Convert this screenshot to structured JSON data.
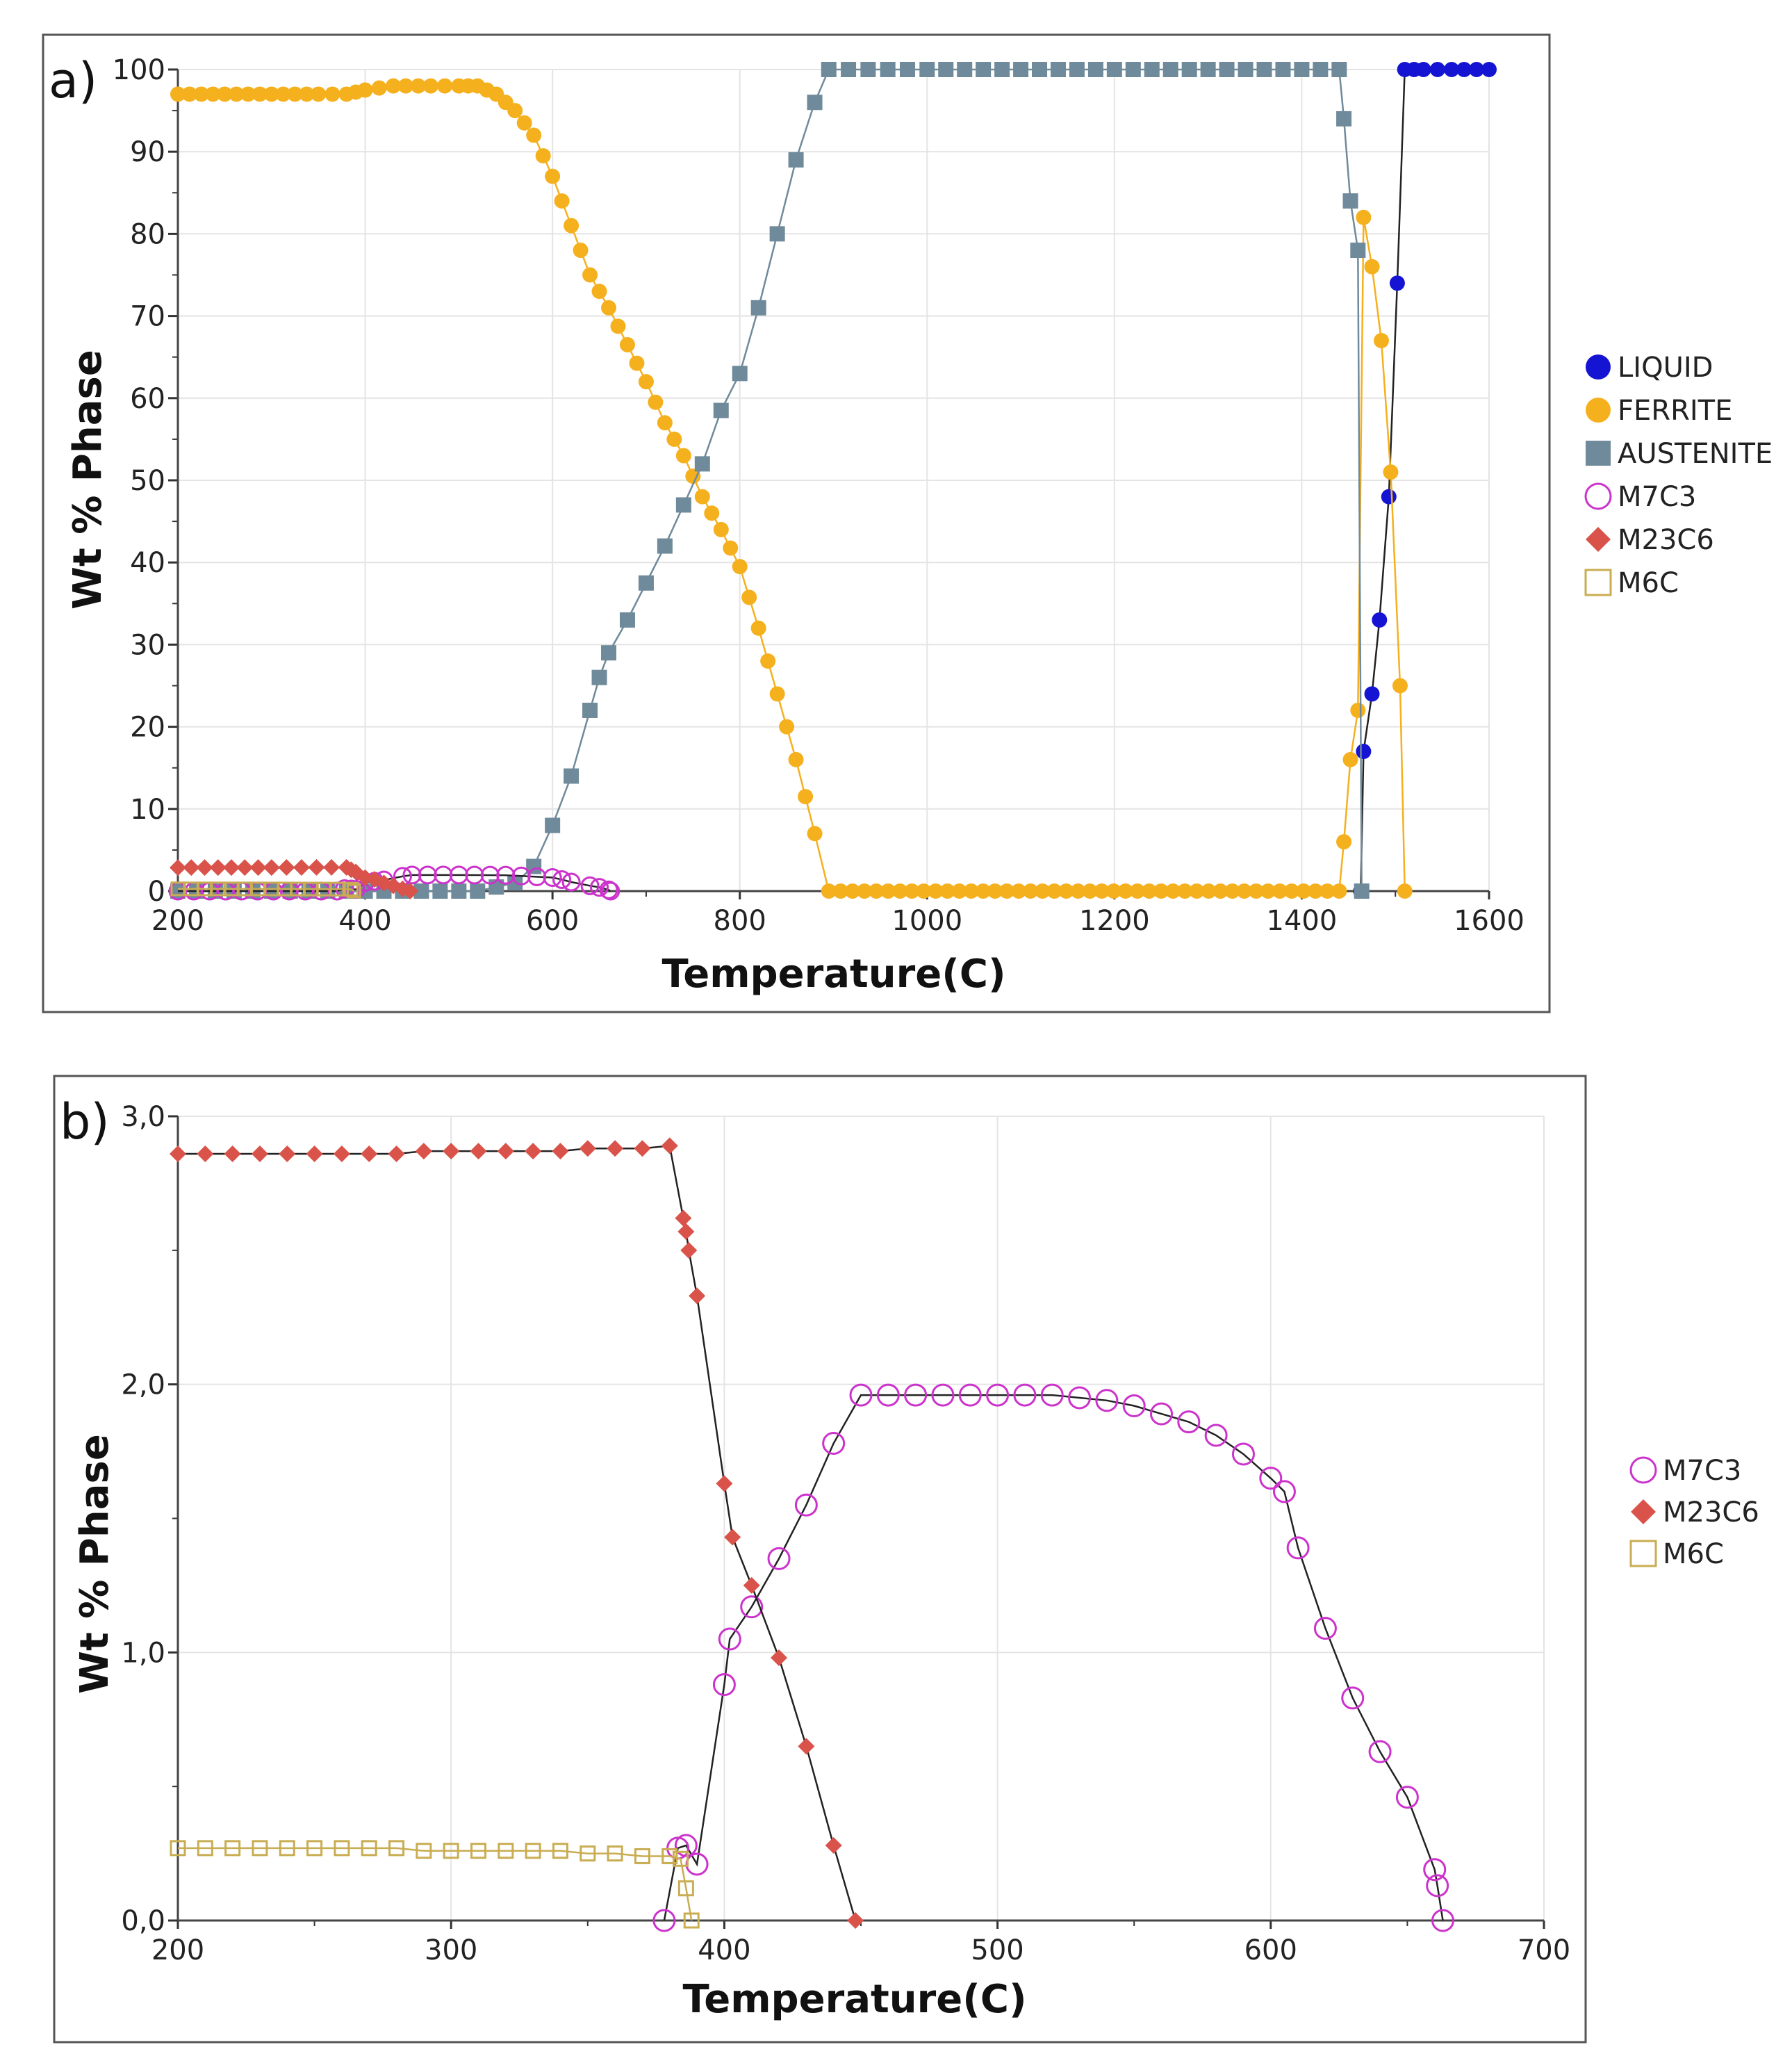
{
  "colors": {
    "liquid": "#1414d2",
    "ferrite": "#f5b01e",
    "austenite": "#6f8a9a",
    "m7c3": "#cc33cc",
    "m23c6": "#d9534a",
    "m6c": "#c9ad52",
    "line": "#222222",
    "grid": "#e4e4e4",
    "frame": "#555555"
  },
  "chart_data": [
    {
      "panel_label": "a)",
      "type": "line",
      "xlabel": "Temperature(C)",
      "ylabel": "Wt % Phase",
      "xlim": [
        200,
        1600
      ],
      "ylim": [
        0,
        100
      ],
      "xticks": [
        "200",
        "400",
        "600",
        "800",
        "1000",
        "1200",
        "1400",
        "1600"
      ],
      "yticks": [
        "0",
        "10",
        "20",
        "30",
        "40",
        "50",
        "60",
        "70",
        "80",
        "90",
        "100"
      ],
      "legend_position": "right",
      "legend": [
        "LIQUID",
        "FERRITE",
        "AUSTENITE",
        "M7C3",
        "M23C6",
        "M6C"
      ],
      "series": [
        {
          "name": "LIQUID",
          "marker": "filled-circle",
          "x": [
            1463,
            1466,
            1475,
            1483,
            1493,
            1502,
            1510,
            1530,
            1560,
            1600
          ],
          "y": [
            0,
            17,
            24,
            33,
            48,
            74,
            100,
            100,
            100,
            100
          ]
        },
        {
          "name": "FERRITE",
          "marker": "filled-circle",
          "x": [
            200,
            250,
            300,
            350,
            380,
            400,
            430,
            470,
            500,
            520,
            540,
            560,
            580,
            600,
            620,
            640,
            650,
            660,
            680,
            700,
            720,
            740,
            760,
            780,
            800,
            820,
            840,
            860,
            880,
            895,
            1440,
            1445,
            1452,
            1460,
            1466,
            1475,
            1485,
            1495,
            1505,
            1510
          ],
          "y": [
            97,
            97,
            97,
            97,
            97,
            97.5,
            98,
            98,
            98,
            98,
            97,
            95,
            92,
            87,
            81,
            75,
            73,
            71,
            66.5,
            62,
            57,
            53,
            48,
            44,
            39.5,
            32,
            24,
            16,
            7,
            0,
            0,
            6,
            16,
            22,
            82,
            76,
            67,
            51,
            25,
            0
          ]
        },
        {
          "name": "AUSTENITE",
          "marker": "filled-square",
          "x": [
            200,
            400,
            500,
            520,
            540,
            560,
            580,
            600,
            620,
            640,
            650,
            660,
            680,
            700,
            720,
            740,
            760,
            780,
            800,
            820,
            840,
            860,
            880,
            895,
            1000,
            1200,
            1400,
            1440,
            1445,
            1452,
            1460,
            1464
          ],
          "y": [
            0,
            0,
            0,
            0,
            0.5,
            1,
            3,
            8,
            14,
            22,
            26,
            29,
            33,
            37.5,
            42,
            47,
            52,
            58.5,
            63,
            71,
            80,
            89,
            96,
            100,
            100,
            100,
            100,
            100,
            94,
            84,
            78,
            0
          ]
        },
        {
          "name": "M7C3",
          "marker": "open-circle",
          "x": [
            200,
            370,
            378,
            385,
            390,
            400,
            410,
            420,
            440,
            450,
            500,
            550,
            600,
            610,
            620,
            640,
            650,
            660,
            662
          ],
          "y": [
            0,
            0,
            0.3,
            0.25,
            0.2,
            1.05,
            1.2,
            1.35,
            1.8,
            1.96,
            1.96,
            1.93,
            1.65,
            1.4,
            1.1,
            0.65,
            0.46,
            0.15,
            0
          ]
        },
        {
          "name": "M23C6",
          "marker": "filled-diamond",
          "x": [
            200,
            300,
            380,
            385,
            390,
            400,
            410,
            420,
            430,
            440,
            448
          ],
          "y": [
            2.86,
            2.87,
            2.89,
            2.6,
            2.33,
            1.63,
            1.43,
            0.98,
            0.65,
            0.28,
            0
          ]
        },
        {
          "name": "M6C",
          "marker": "open-square",
          "x": [
            200,
            300,
            370,
            385,
            388
          ],
          "y": [
            0.27,
            0.26,
            0.24,
            0.23,
            0
          ]
        }
      ]
    },
    {
      "panel_label": "b)",
      "type": "line",
      "xlabel": "Temperature(C)",
      "ylabel": "Wt % Phase",
      "xlim": [
        200,
        700
      ],
      "ylim": [
        0,
        3
      ],
      "xticks": [
        "200",
        "300",
        "400",
        "500",
        "600",
        "700"
      ],
      "yticks": [
        "0,0",
        "1,0",
        "2,0",
        "3,0"
      ],
      "legend_position": "right",
      "legend": [
        "M7C3",
        "M23C6",
        "M6C"
      ],
      "series": [
        {
          "name": "M7C3",
          "marker": "open-circle",
          "x": [
            378,
            383,
            386,
            390,
            400,
            402,
            410,
            420,
            430,
            440,
            450,
            460,
            470,
            480,
            490,
            500,
            510,
            520,
            530,
            540,
            550,
            560,
            570,
            580,
            590,
            600,
            605,
            610,
            620,
            630,
            640,
            650,
            660,
            661,
            663
          ],
          "y": [
            0,
            0.27,
            0.28,
            0.21,
            0.88,
            1.05,
            1.17,
            1.35,
            1.55,
            1.78,
            1.96,
            1.96,
            1.96,
            1.96,
            1.96,
            1.96,
            1.96,
            1.96,
            1.95,
            1.94,
            1.92,
            1.89,
            1.86,
            1.81,
            1.74,
            1.65,
            1.6,
            1.39,
            1.09,
            0.83,
            0.63,
            0.46,
            0.19,
            0.13,
            0
          ]
        },
        {
          "name": "M23C6",
          "marker": "filled-diamond",
          "x": [
            200,
            210,
            220,
            230,
            240,
            250,
            260,
            270,
            280,
            290,
            300,
            310,
            320,
            330,
            340,
            350,
            360,
            370,
            380,
            385,
            386,
            387,
            390,
            400,
            403,
            410,
            420,
            430,
            440,
            448
          ],
          "y": [
            2.86,
            2.86,
            2.86,
            2.86,
            2.86,
            2.86,
            2.86,
            2.86,
            2.86,
            2.87,
            2.87,
            2.87,
            2.87,
            2.87,
            2.87,
            2.88,
            2.88,
            2.88,
            2.89,
            2.62,
            2.57,
            2.5,
            2.33,
            1.63,
            1.43,
            1.25,
            0.98,
            0.65,
            0.28,
            0
          ]
        },
        {
          "name": "M6C",
          "marker": "open-square",
          "x": [
            200,
            210,
            220,
            230,
            240,
            250,
            260,
            270,
            280,
            290,
            300,
            310,
            320,
            330,
            340,
            350,
            360,
            370,
            380,
            384,
            386,
            388
          ],
          "y": [
            0.27,
            0.27,
            0.27,
            0.27,
            0.27,
            0.27,
            0.27,
            0.27,
            0.27,
            0.26,
            0.26,
            0.26,
            0.26,
            0.26,
            0.26,
            0.25,
            0.25,
            0.24,
            0.24,
            0.23,
            0.12,
            0
          ]
        }
      ]
    }
  ]
}
